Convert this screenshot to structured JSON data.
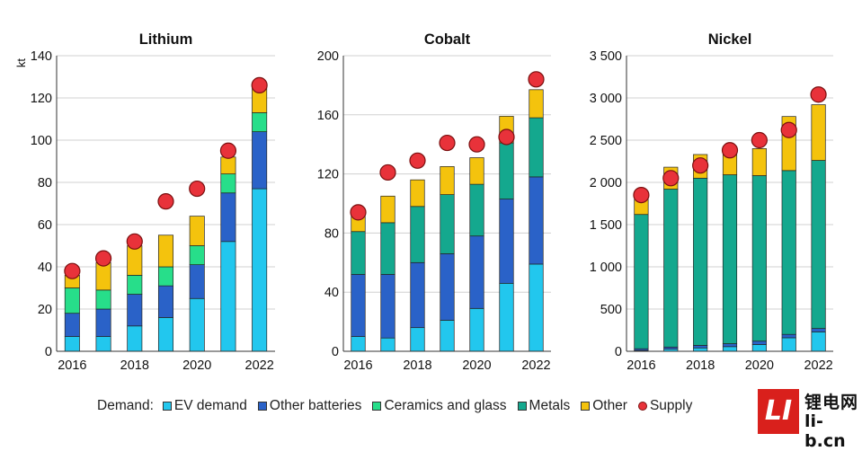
{
  "chart_data": [
    {
      "type": "bar",
      "stacked": true,
      "title": "Lithium",
      "ylabel": "kt",
      "ylim": [
        0,
        140
      ],
      "yticks": [
        0,
        20,
        40,
        60,
        80,
        100,
        120,
        140
      ],
      "ytick_labels": [
        "0",
        "20",
        "40",
        "60",
        "80",
        "100",
        "120",
        "140"
      ],
      "categories": [
        "2016",
        "2017",
        "2018",
        "2019",
        "2020",
        "2021",
        "2022"
      ],
      "xtick_labels": [
        "2016",
        "2018",
        "2020",
        "2022"
      ],
      "series": [
        {
          "name": "EV demand",
          "values": [
            7,
            7,
            12,
            16,
            25,
            52,
            77
          ]
        },
        {
          "name": "Other batteries",
          "values": [
            11,
            13,
            15,
            15,
            16,
            23,
            27
          ]
        },
        {
          "name": "Ceramics and glass",
          "values": [
            12,
            9,
            9,
            9,
            9,
            9,
            9
          ]
        },
        {
          "name": "Metals",
          "values": [
            0,
            0,
            0,
            0,
            0,
            0,
            0
          ]
        },
        {
          "name": "Other",
          "values": [
            6,
            13,
            14,
            15,
            14,
            8,
            12
          ]
        }
      ],
      "supply": [
        38,
        44,
        52,
        71,
        77,
        95,
        126
      ]
    },
    {
      "type": "bar",
      "stacked": true,
      "title": "Cobalt",
      "ylim": [
        0,
        200
      ],
      "yticks": [
        0,
        40,
        80,
        120,
        160,
        200
      ],
      "ytick_labels": [
        "0",
        "40",
        "80",
        "120",
        "160",
        "200"
      ],
      "categories": [
        "2016",
        "2017",
        "2018",
        "2019",
        "2020",
        "2021",
        "2022"
      ],
      "xtick_labels": [
        "2016",
        "2018",
        "2020",
        "2022"
      ],
      "series": [
        {
          "name": "EV demand",
          "values": [
            10,
            9,
            16,
            21,
            29,
            46,
            59
          ]
        },
        {
          "name": "Other batteries",
          "values": [
            42,
            43,
            44,
            45,
            49,
            57,
            59
          ]
        },
        {
          "name": "Ceramics and glass",
          "values": [
            0,
            0,
            0,
            0,
            0,
            0,
            0
          ]
        },
        {
          "name": "Metals",
          "values": [
            29,
            35,
            38,
            40,
            35,
            38,
            40
          ]
        },
        {
          "name": "Other",
          "values": [
            11,
            18,
            18,
            19,
            18,
            18,
            19
          ]
        }
      ],
      "supply": [
        94,
        121,
        129,
        141,
        140,
        145,
        184
      ]
    },
    {
      "type": "bar",
      "stacked": true,
      "title": "Nickel",
      "ylim": [
        0,
        3500
      ],
      "yticks": [
        0,
        500,
        1000,
        1500,
        2000,
        2500,
        3000,
        3500
      ],
      "ytick_labels": [
        "0",
        "500",
        "1 000",
        "1 500",
        "2 000",
        "2 500",
        "3 000",
        "3 500"
      ],
      "categories": [
        "2016",
        "2017",
        "2018",
        "2019",
        "2020",
        "2021",
        "2022"
      ],
      "xtick_labels": [
        "2016",
        "2018",
        "2020",
        "2022"
      ],
      "series": [
        {
          "name": "EV demand",
          "values": [
            10,
            25,
            40,
            55,
            80,
            160,
            230
          ]
        },
        {
          "name": "Other batteries",
          "values": [
            20,
            25,
            30,
            35,
            40,
            40,
            40
          ]
        },
        {
          "name": "Ceramics and glass",
          "values": [
            0,
            0,
            0,
            0,
            0,
            0,
            0
          ]
        },
        {
          "name": "Metals",
          "values": [
            1590,
            1870,
            1980,
            2000,
            1960,
            1940,
            1990
          ]
        },
        {
          "name": "Other",
          "values": [
            180,
            260,
            280,
            290,
            320,
            640,
            660
          ]
        }
      ],
      "supply": [
        1850,
        2050,
        2200,
        2380,
        2500,
        2620,
        3040
      ]
    }
  ],
  "legend": {
    "lead": "Demand:",
    "items": [
      {
        "label": "EV demand",
        "color": "#22c7ee"
      },
      {
        "label": "Other batteries",
        "color": "#2a62c8"
      },
      {
        "label": "Ceramics and glass",
        "color": "#27de8a"
      },
      {
        "label": "Metals",
        "color": "#14a88e"
      },
      {
        "label": "Other",
        "color": "#f4c30d"
      }
    ],
    "supply_label": "Supply",
    "supply_color": "#e8323a"
  },
  "logo": {
    "cn": "锂电网",
    "domain": "li-b.cn",
    "mark": "LI"
  }
}
